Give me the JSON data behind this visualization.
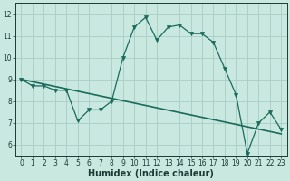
{
  "xlabel": "Humidex (Indice chaleur)",
  "background_color": "#c8e8e0",
  "line_color": "#1a6b5a",
  "xlim": [
    -0.5,
    23.5
  ],
  "ylim": [
    5.5,
    12.5
  ],
  "yticks": [
    6,
    7,
    8,
    9,
    10,
    11,
    12
  ],
  "xticks": [
    0,
    1,
    2,
    3,
    4,
    5,
    6,
    7,
    8,
    9,
    10,
    11,
    12,
    13,
    14,
    15,
    16,
    17,
    18,
    19,
    20,
    21,
    22,
    23
  ],
  "wavy_x": [
    0,
    1,
    2,
    3,
    4,
    5,
    6,
    7,
    8,
    9,
    10,
    11,
    12,
    13,
    14,
    15,
    16,
    17,
    18,
    19,
    20,
    21,
    22,
    23
  ],
  "wavy_y": [
    9.0,
    8.7,
    8.7,
    8.5,
    8.5,
    7.1,
    7.6,
    7.6,
    8.0,
    10.0,
    11.4,
    11.85,
    10.8,
    11.4,
    11.5,
    11.1,
    11.1,
    10.7,
    9.5,
    8.3,
    5.6,
    7.0,
    7.5,
    6.7
  ],
  "trend_x": [
    0,
    23
  ],
  "trend_y": [
    9.0,
    6.5
  ],
  "grid_color": "#a8ccc4",
  "font_color": "#1a3a34",
  "tick_fontsize": 5.5,
  "xlabel_fontsize": 7
}
